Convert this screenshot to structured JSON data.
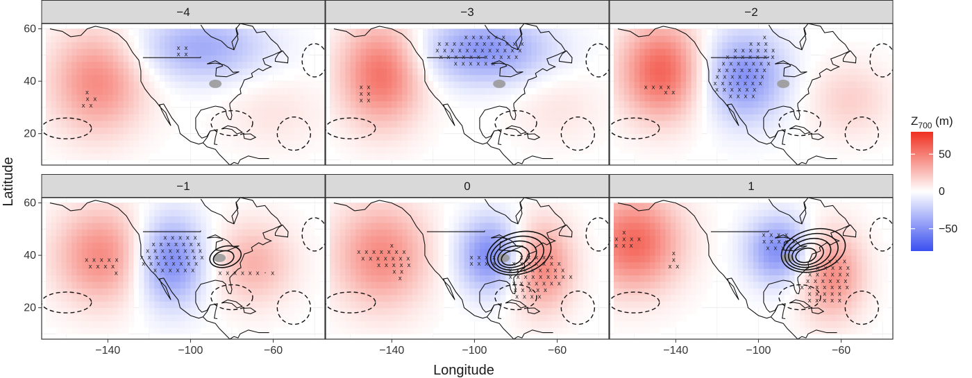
{
  "chart_data": {
    "type": "heatmap",
    "layout": "faceted small multiples (2 rows x 3 columns) of gridded map anomalies",
    "xlabel": "Longitude",
    "ylabel": "Latitude",
    "x_ticks": [
      -140,
      -100,
      -60
    ],
    "y_ticks": [
      20,
      40,
      60
    ],
    "xlim": [
      -172,
      -35
    ],
    "ylim": [
      8,
      62
    ],
    "grid": true,
    "legend": {
      "title_main": "Z",
      "title_sub": "700",
      "title_unit": " (m)",
      "placement": "right",
      "ticks": [
        50,
        0,
        -50
      ],
      "tick_labels": [
        "50",
        "0",
        "−50"
      ],
      "range": [
        -80,
        80
      ],
      "colors": {
        "positive": "#f03020",
        "zero": "#ffffff",
        "negative": "#3a4ff0"
      }
    },
    "panels": [
      {
        "label": "−4",
        "anomaly_centers": [
          {
            "lon": -145,
            "lat": 40,
            "value": 45,
            "spread_lon": 16,
            "spread_lat": 14
          },
          {
            "lon": -95,
            "lat": 53,
            "value": -38,
            "spread_lon": 22,
            "spread_lat": 9
          },
          {
            "lon": -60,
            "lat": 28,
            "value": 10,
            "spread_lon": 18,
            "spread_lat": 10
          }
        ],
        "significance": [
          {
            "lon": -104,
            "lat": 52,
            "text": "x x"
          },
          {
            "lon": -104,
            "lat": 49.5,
            "text": "x x"
          },
          {
            "lon": -150,
            "lat": 35,
            "text": "x"
          },
          {
            "lon": -148,
            "lat": 32.5,
            "text": "x x"
          },
          {
            "lon": -150,
            "lat": 30,
            "text": "x x"
          }
        ],
        "low_pressure_contours": []
      },
      {
        "label": "−3",
        "anomaly_centers": [
          {
            "lon": -145,
            "lat": 43,
            "value": 55,
            "spread_lon": 14,
            "spread_lat": 14
          },
          {
            "lon": -95,
            "lat": 52,
            "value": -48,
            "spread_lon": 22,
            "spread_lat": 9
          },
          {
            "lon": -60,
            "lat": 30,
            "value": 10,
            "spread_lon": 16,
            "spread_lat": 10
          }
        ],
        "significance": [
          {
            "lon": -95,
            "lat": 56,
            "text": "x x x x x x"
          },
          {
            "lon": -97,
            "lat": 53.5,
            "text": "x x x x x x x x x x x x"
          },
          {
            "lon": -98,
            "lat": 51,
            "text": "x x x x x x x x x x x x"
          },
          {
            "lon": -98,
            "lat": 48.5,
            "text": "x x x x x x x x x x x"
          },
          {
            "lon": -100,
            "lat": 46,
            "text": "x x x x x x"
          },
          {
            "lon": -153,
            "lat": 37,
            "text": "x x"
          },
          {
            "lon": -153,
            "lat": 34.5,
            "text": "x x"
          },
          {
            "lon": -153,
            "lat": 32,
            "text": "x x"
          }
        ],
        "low_pressure_contours": []
      },
      {
        "label": "−2",
        "anomaly_centers": [
          {
            "lon": -147,
            "lat": 44,
            "value": 60,
            "spread_lon": 14,
            "spread_lat": 13
          },
          {
            "lon": -107,
            "lat": 42,
            "value": -50,
            "spread_lon": 14,
            "spread_lat": 12
          },
          {
            "lon": -56,
            "lat": 33,
            "value": 18,
            "spread_lon": 14,
            "spread_lat": 10
          }
        ],
        "significance": [
          {
            "lon": -97,
            "lat": 56,
            "text": "x"
          },
          {
            "lon": -100,
            "lat": 53.5,
            "text": "x x x"
          },
          {
            "lon": -102,
            "lat": 51,
            "text": "x x x x x x"
          },
          {
            "lon": -104,
            "lat": 48.5,
            "text": "x x x x x x x"
          },
          {
            "lon": -106,
            "lat": 46,
            "text": "x x x x x x x"
          },
          {
            "lon": -108,
            "lat": 43.5,
            "text": "x x x x x x x"
          },
          {
            "lon": -109,
            "lat": 41,
            "text": "x x x x x x x"
          },
          {
            "lon": -110,
            "lat": 38.5,
            "text": "x x x x x x x"
          },
          {
            "lon": -111,
            "lat": 36,
            "text": "x x x x x x"
          },
          {
            "lon": -108,
            "lat": 33.5,
            "text": "x x x x"
          },
          {
            "lon": -149,
            "lat": 37,
            "text": "x x x x"
          },
          {
            "lon": -143,
            "lat": 35,
            "text": "x x"
          }
        ],
        "low_pressure_contours": []
      },
      {
        "label": "−1",
        "anomaly_centers": [
          {
            "lon": -143,
            "lat": 40,
            "value": 45,
            "spread_lon": 16,
            "spread_lat": 13
          },
          {
            "lon": -110,
            "lat": 38,
            "value": -55,
            "spread_lon": 12,
            "spread_lat": 12
          },
          {
            "lon": -70,
            "lat": 37,
            "value": 30,
            "spread_lon": 14,
            "spread_lat": 11
          }
        ],
        "significance": [
          {
            "lon": -105,
            "lat": 46,
            "text": "x x x x x"
          },
          {
            "lon": -107,
            "lat": 43.5,
            "text": "x x x x x x x"
          },
          {
            "lon": -108,
            "lat": 41,
            "text": "x x x x x x x x"
          },
          {
            "lon": -109,
            "lat": 38.5,
            "text": "x x x x x x x x x"
          },
          {
            "lon": -110,
            "lat": 36,
            "text": "x x x x x x x x"
          },
          {
            "lon": -108,
            "lat": 33.5,
            "text": "x x x x x x"
          },
          {
            "lon": -73,
            "lat": 32.5,
            "text": "x x x x x  x · x"
          },
          {
            "lon": -143,
            "lat": 37.5,
            "text": "x x x x   x"
          },
          {
            "lon": -143,
            "lat": 35,
            "text": "x x x   x"
          },
          {
            "lon": -136,
            "lat": 32.5,
            "text": "x"
          }
        ],
        "low_pressure_contours": [
          {
            "lon": -84,
            "lat": 39,
            "levels": 2
          }
        ]
      },
      {
        "label": "0",
        "anomaly_centers": [
          {
            "lon": -145,
            "lat": 40,
            "value": 45,
            "spread_lon": 16,
            "spread_lat": 14
          },
          {
            "lon": -92,
            "lat": 40,
            "value": -55,
            "spread_lon": 11,
            "spread_lat": 10
          },
          {
            "lon": -68,
            "lat": 36,
            "value": 48,
            "spread_lon": 11,
            "spread_lat": 12
          }
        ],
        "significance": [
          {
            "lon": -140,
            "lat": 43,
            "text": "x"
          },
          {
            "lon": -145,
            "lat": 40.5,
            "text": "x x x x x x x"
          },
          {
            "lon": -143,
            "lat": 38,
            "text": "x x x x x x x"
          },
          {
            "lon": -139,
            "lat": 35.5,
            "text": "x x x x x"
          },
          {
            "lon": -137,
            "lat": 33,
            "text": "x x"
          },
          {
            "lon": -136,
            "lat": 30.5,
            "text": "x"
          },
          {
            "lon": -96,
            "lat": 38.5,
            "text": "x x x x"
          },
          {
            "lon": -96,
            "lat": 36,
            "text": "x x x x"
          },
          {
            "lon": -70,
            "lat": 38.5,
            "text": "x x x x x"
          },
          {
            "lon": -70,
            "lat": 36,
            "text": "x x x x x x x"
          },
          {
            "lon": -70,
            "lat": 33.5,
            "text": "x x x x x x x x"
          },
          {
            "lon": -68,
            "lat": 31,
            "text": "x x x x x x x x x"
          },
          {
            "lon": -70,
            "lat": 28.5,
            "text": "x x x x x x x"
          },
          {
            "lon": -73,
            "lat": 26,
            "text": "x x x x x"
          },
          {
            "lon": -74,
            "lat": 23.5,
            "text": "x x x x"
          }
        ],
        "low_pressure_contours": [
          {
            "lon": -82,
            "lat": 39,
            "levels": 5
          }
        ]
      },
      {
        "label": "1",
        "anomaly_centers": [
          {
            "lon": -160,
            "lat": 45,
            "value": 58,
            "spread_lon": 16,
            "spread_lat": 13
          },
          {
            "lon": -90,
            "lat": 42,
            "value": -52,
            "spread_lon": 11,
            "spread_lat": 9
          },
          {
            "lon": -65,
            "lat": 33,
            "value": 45,
            "spread_lon": 11,
            "spread_lat": 12
          }
        ],
        "significance": [
          {
            "lon": -165,
            "lat": 48,
            "text": "x"
          },
          {
            "lon": -165,
            "lat": 45.5,
            "text": "x x x x x"
          },
          {
            "lon": -167,
            "lat": 43,
            "text": "x x x x"
          },
          {
            "lon": -141,
            "lat": 40,
            "text": "x"
          },
          {
            "lon": -141,
            "lat": 37.5,
            "text": "x"
          },
          {
            "lon": -141,
            "lat": 35,
            "text": "x x"
          },
          {
            "lon": -92,
            "lat": 47,
            "text": "x x x x"
          },
          {
            "lon": -90,
            "lat": 44.5,
            "text": "x x x x x"
          },
          {
            "lon": -90,
            "lat": 42,
            "text": "x x x x"
          },
          {
            "lon": -62,
            "lat": 37,
            "text": "x x x"
          },
          {
            "lon": -64,
            "lat": 34.5,
            "text": "x x x x x"
          },
          {
            "lon": -66,
            "lat": 32,
            "text": "x x x x x x"
          },
          {
            "lon": -67,
            "lat": 29.5,
            "text": "x x x x x x"
          },
          {
            "lon": -68,
            "lat": 27,
            "text": "x x x x x x x"
          },
          {
            "lon": -68,
            "lat": 24.5,
            "text": "x x x x x"
          },
          {
            "lon": -68,
            "lat": 22,
            "text": "x x x x x"
          }
        ],
        "low_pressure_contours": [
          {
            "lon": -77,
            "lat": 40,
            "levels": 5
          }
        ]
      }
    ]
  }
}
